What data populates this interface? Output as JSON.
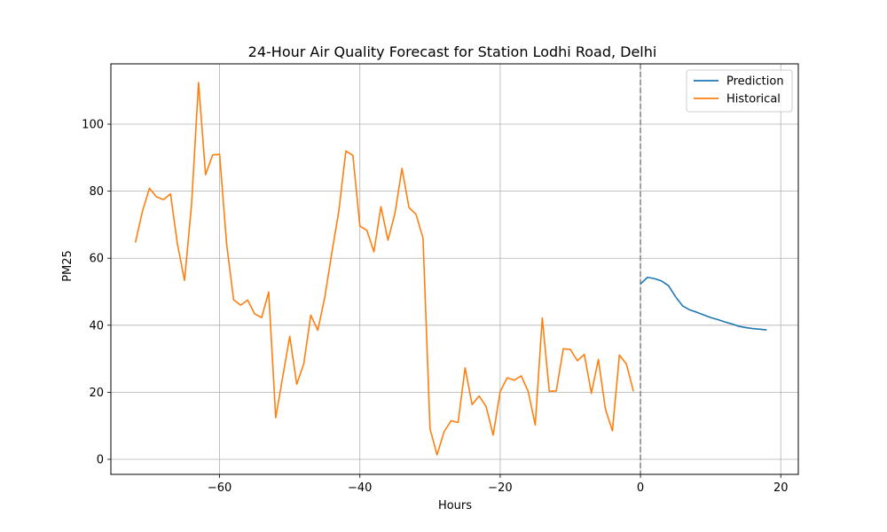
{
  "chart_data": {
    "type": "line",
    "title": "24-Hour Air Quality Forecast for Station Lodhi Road, Delhi",
    "xlabel": "Hours",
    "ylabel": "PM25",
    "xlim": [
      -75.5,
      22.5
    ],
    "ylim": [
      -4.5,
      118
    ],
    "xticks": [
      -60,
      -40,
      -20,
      0,
      20
    ],
    "yticks": [
      0,
      20,
      40,
      60,
      80,
      100
    ],
    "grid": true,
    "legend_position": "top-right",
    "reference_line": {
      "x": 0,
      "style": "dashed",
      "color": "#808080"
    },
    "series": [
      {
        "name": "Prediction",
        "color": "#1f77b4",
        "x": [
          0,
          1,
          2,
          3,
          4,
          5,
          6,
          7,
          8,
          9,
          10,
          11,
          12,
          13,
          14,
          15,
          16,
          17,
          18
        ],
        "y": [
          52.3,
          54.3,
          53.9,
          53.2,
          51.8,
          48.5,
          45.8,
          44.6,
          43.9,
          43.1,
          42.3,
          41.7,
          41.0,
          40.4,
          39.7,
          39.3,
          39.0,
          38.8,
          38.6
        ]
      },
      {
        "name": "Historical",
        "color": "#ff7f0e",
        "x": [
          -72,
          -71,
          -70,
          -69,
          -68,
          -67,
          -66,
          -65,
          -64,
          -63,
          -62,
          -61,
          -60,
          -59,
          -58,
          -57,
          -56,
          -55,
          -54,
          -53,
          -52,
          -51,
          -50,
          -49,
          -48,
          -47,
          -46,
          -45,
          -44,
          -43,
          -42,
          -41,
          -40,
          -39,
          -38,
          -37,
          -36,
          -35,
          -34,
          -33,
          -32,
          -31,
          -30,
          -29,
          -28,
          -27,
          -26,
          -25,
          -24,
          -23,
          -22,
          -21,
          -20,
          -19,
          -18,
          -17,
          -16,
          -15,
          -14,
          -13,
          -12,
          -11,
          -10,
          -9,
          -8,
          -7,
          -6,
          -5,
          -4,
          -3,
          -2,
          -1
        ],
        "y": [
          64.7,
          74.0,
          80.9,
          78.3,
          77.5,
          79.2,
          64.1,
          53.4,
          75.9,
          112.4,
          84.9,
          90.8,
          91.0,
          64.3,
          47.6,
          46.0,
          47.5,
          43.4,
          42.3,
          49.9,
          12.4,
          24.6,
          36.7,
          22.4,
          28.5,
          43.0,
          38.5,
          48.4,
          61.6,
          74.1,
          92.0,
          90.7,
          69.6,
          68.3,
          61.9,
          75.4,
          65.4,
          73.4,
          86.8,
          75.1,
          73.1,
          66.0,
          9.1,
          1.3,
          8.2,
          11.5,
          11.0,
          27.3,
          16.3,
          18.9,
          15.7,
          7.2,
          20.2,
          24.3,
          23.6,
          24.9,
          20.2,
          10.2,
          42.2,
          20.3,
          20.4,
          33.0,
          32.8,
          29.4,
          31.3,
          19.7,
          29.8,
          15.0,
          8.5,
          31.1,
          28.4,
          20.3
        ]
      }
    ]
  }
}
